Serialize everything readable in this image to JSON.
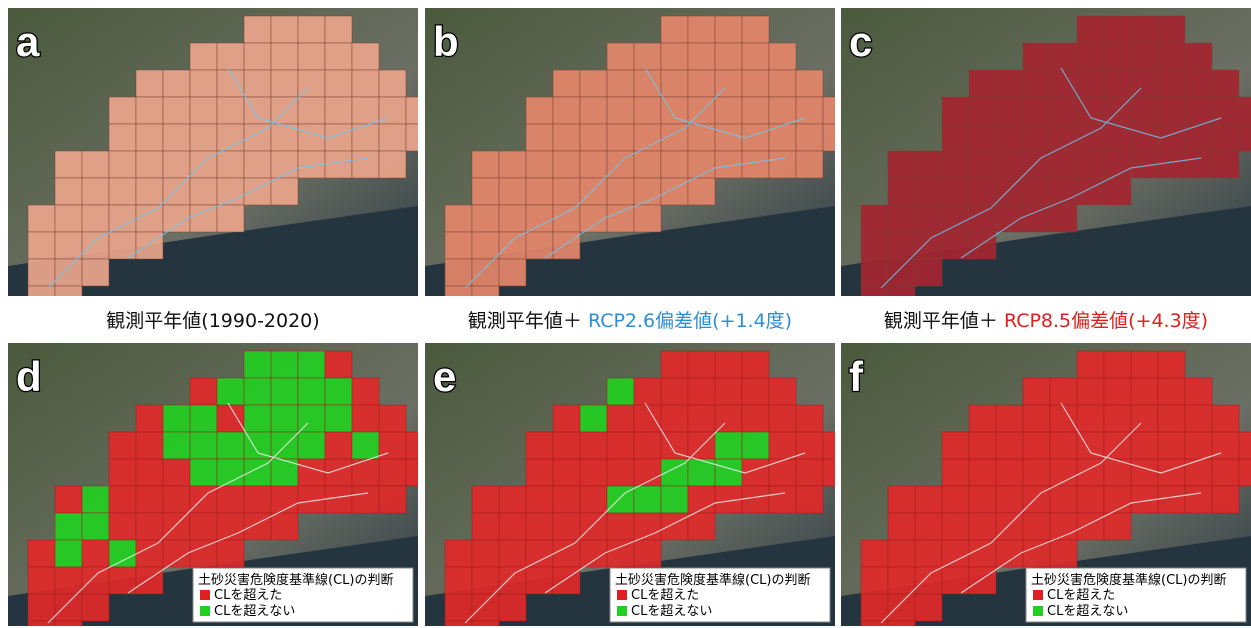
{
  "panels": [
    {
      "letter": "a",
      "caption": [
        "観測平年値(1990-2020)"
      ]
    },
    {
      "letter": "b",
      "caption": [
        "観測平年値＋ ",
        "RCP2.6偏差値(+1.4度)"
      ]
    },
    {
      "letter": "c",
      "caption": [
        "観測平年値＋ ",
        "RCP8.5偏差値(+4.3度)"
      ]
    },
    {
      "letter": "d",
      "legend": {
        "title": "土砂災害危険度基準線(CL)の判断",
        "items": [
          "CLを超えた",
          "CLを超えない"
        ]
      }
    },
    {
      "letter": "e",
      "legend": {
        "title": "土砂災害危険度基準線(CL)の判断",
        "items": [
          "CLを超えた",
          "CLを超えない"
        ]
      }
    },
    {
      "letter": "f",
      "legend": {
        "title": "土砂災害危険度基準線(CL)の判断",
        "items": [
          "CLを超えた",
          "CLを超えない"
        ]
      }
    }
  ]
}
